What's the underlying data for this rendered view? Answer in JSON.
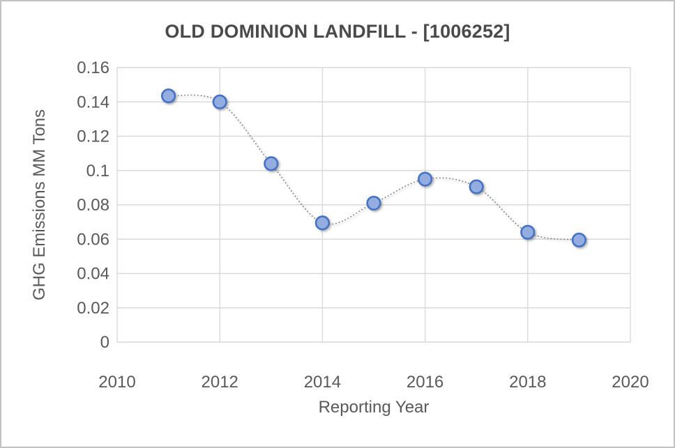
{
  "window": {
    "background": "#ffffff",
    "border_color": "#c3c3c3"
  },
  "chart_data": {
    "type": "scatter",
    "title": "OLD DOMINION LANDFILL - [1006252]",
    "xlabel": "Reporting Year",
    "ylabel": "GHG Emissions MM Tons",
    "x": [
      2011,
      2012,
      2013,
      2014,
      2015,
      2016,
      2017,
      2018,
      2019
    ],
    "y": [
      0.1435,
      0.14,
      0.104,
      0.0695,
      0.081,
      0.095,
      0.0905,
      0.064,
      0.0595
    ],
    "xlim": [
      2010,
      2020
    ],
    "ylim": [
      0,
      0.16
    ],
    "x_tick_values": [
      2010,
      2012,
      2014,
      2016,
      2018,
      2020
    ],
    "x_tick_labels": [
      "2010",
      "2012",
      "2014",
      "2016",
      "2018",
      "2020"
    ],
    "y_tick_values": [
      0,
      0.02,
      0.04,
      0.06,
      0.08,
      0.1,
      0.12,
      0.14,
      0.16
    ],
    "y_tick_labels": [
      "0",
      "0.02",
      "0.04",
      "0.06",
      "0.08",
      "0.1",
      "0.12",
      "0.14",
      "0.16"
    ],
    "grid": true,
    "legend": "none",
    "line": {
      "style": "dotted",
      "smooth": true,
      "color": "#7f7f7f"
    },
    "marker": {
      "shape": "circle",
      "fill": "#93ade0",
      "stroke": "#4472c4"
    },
    "colors": {
      "title_text": "#4a4a4a",
      "axis_text": "#595959",
      "gridline": "#d9d9d9"
    }
  }
}
